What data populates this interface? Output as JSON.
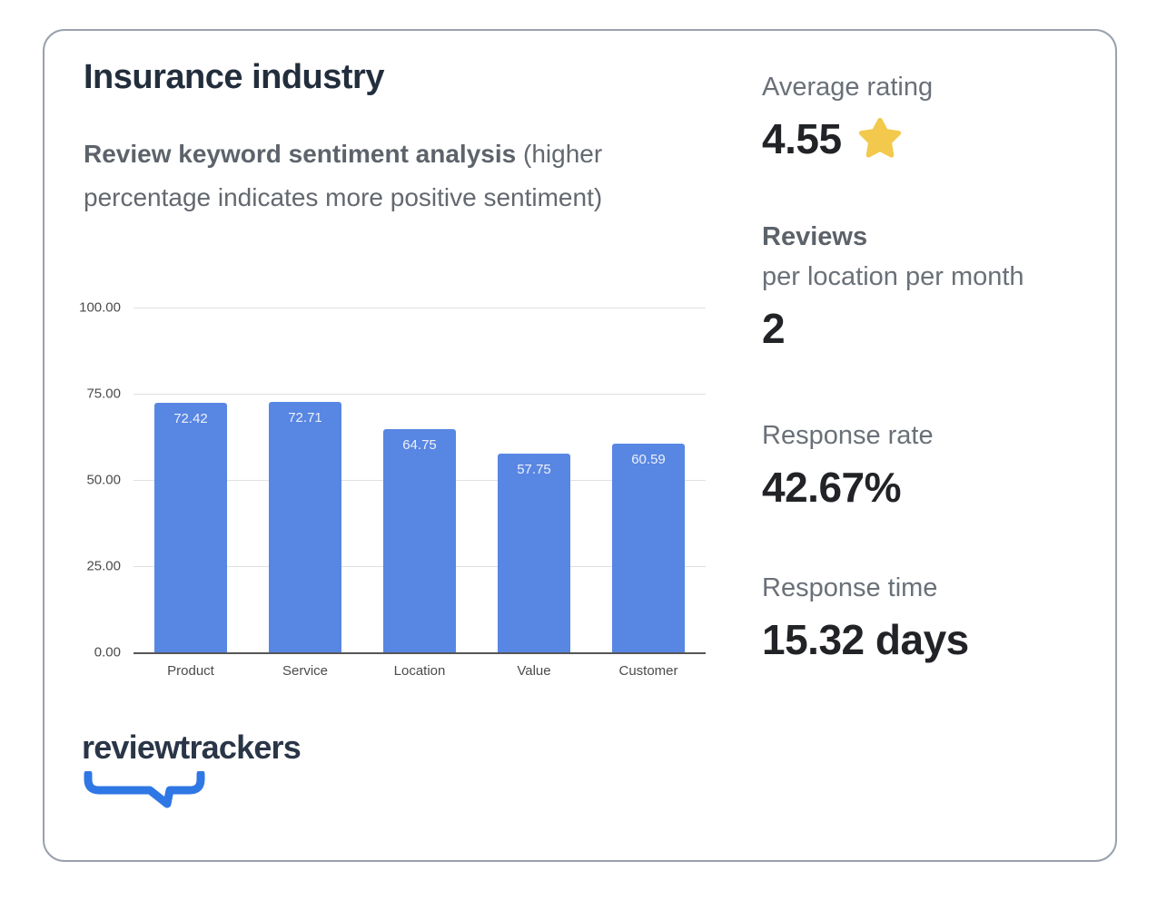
{
  "header": {
    "title": "Insurance industry",
    "subtitle_bold": "Review keyword sentiment analysis",
    "subtitle_rest": " (higher percentage indicates more positive sentiment)"
  },
  "chart_data": {
    "type": "bar",
    "title": "Review keyword sentiment analysis",
    "categories": [
      "Product",
      "Service",
      "Location",
      "Value",
      "Customer"
    ],
    "values": [
      72.42,
      72.71,
      64.75,
      57.75,
      60.59
    ],
    "data_labels": [
      "72.42",
      "72.71",
      "64.75",
      "57.75",
      "60.59"
    ],
    "xlabel": "",
    "ylabel": "",
    "ylim": [
      0,
      100
    ],
    "yticks": [
      0,
      25,
      50,
      75,
      100
    ],
    "ytick_labels": [
      "0.00",
      "25.00",
      "50.00",
      "75.00",
      "100.00"
    ],
    "grid": true,
    "legend": false,
    "bar_color": "#5886e3",
    "data_label_color": "#eef1f7"
  },
  "stats": {
    "average_rating": {
      "label": "Average rating",
      "value": "4.55",
      "icon": "star"
    },
    "reviews": {
      "label_bold": "Reviews",
      "label_rest": "per location per month",
      "value": "2"
    },
    "response_rate": {
      "label": "Response rate",
      "value": "42.67%"
    },
    "response_time": {
      "label": "Response time",
      "value": "15.32 days"
    }
  },
  "logo": {
    "wordmark": "reviewtrackers",
    "icon": "speech-bubble-tail"
  },
  "colors": {
    "card_border": "#99a1ac",
    "title_text": "#232e3d",
    "subtitle_text": "#63686f",
    "bar_blue": "#5886e3",
    "star_yellow": "#f2c94c",
    "stat_value_text": "#212326",
    "stat_label_text": "#6a7078",
    "logo_navy": "#2a3647",
    "logo_blue": "#2e77e5",
    "gridline": "#e0e0e0",
    "axis_line": "#565656"
  }
}
